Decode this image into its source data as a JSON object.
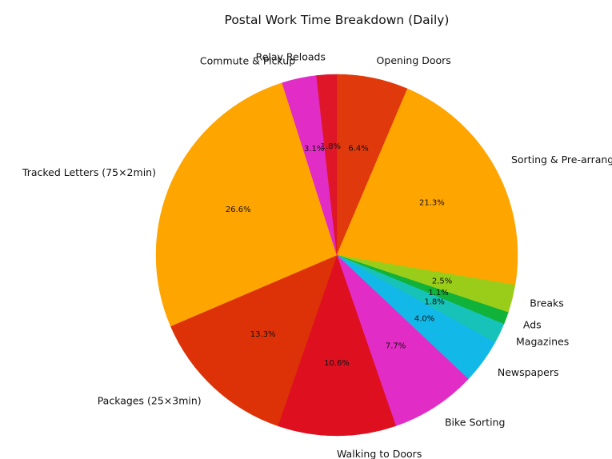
{
  "chart_data": {
    "type": "pie",
    "title": "Postal Work Time Breakdown (Daily)",
    "start_angle_deg": 90,
    "direction": "clockwise",
    "slices": [
      {
        "label": "Opening Doors",
        "value": 6.4,
        "pct_label": "6.4%",
        "color": "#e03a0c"
      },
      {
        "label": "Sorting & Pre-arranging",
        "value": 21.3,
        "pct_label": "21.3%",
        "color": "#ffa500"
      },
      {
        "label": "Breaks",
        "value": 2.5,
        "pct_label": "2.5%",
        "color": "#9acd19"
      },
      {
        "label": "Ads",
        "value": 1.1,
        "pct_label": "1.1%",
        "color": "#10b23a"
      },
      {
        "label": "Magazines",
        "value": 1.8,
        "pct_label": "1.8%",
        "color": "#17c3b8"
      },
      {
        "label": "Newspapers",
        "value": 4.0,
        "pct_label": "4.0%",
        "color": "#12b8e8"
      },
      {
        "label": "Bike Sorting",
        "value": 7.7,
        "pct_label": "7.7%",
        "color": "#e22cc6"
      },
      {
        "label": "Walking to Doors",
        "value": 10.6,
        "pct_label": "10.6%",
        "color": "#de1020"
      },
      {
        "label": "Packages (25×3min)",
        "value": 13.3,
        "pct_label": "13.3%",
        "color": "#dd3208"
      },
      {
        "label": "Tracked Letters (75×2min)",
        "value": 26.6,
        "pct_label": "26.6%",
        "color": "#ffa500"
      },
      {
        "label": "Commute & Pickup",
        "value": 3.1,
        "pct_label": "3.1%",
        "color": "#e22cc6"
      },
      {
        "label": "Relay Reloads",
        "value": 1.8,
        "pct_label": "1.8%",
        "color": "#de1628"
      }
    ]
  }
}
